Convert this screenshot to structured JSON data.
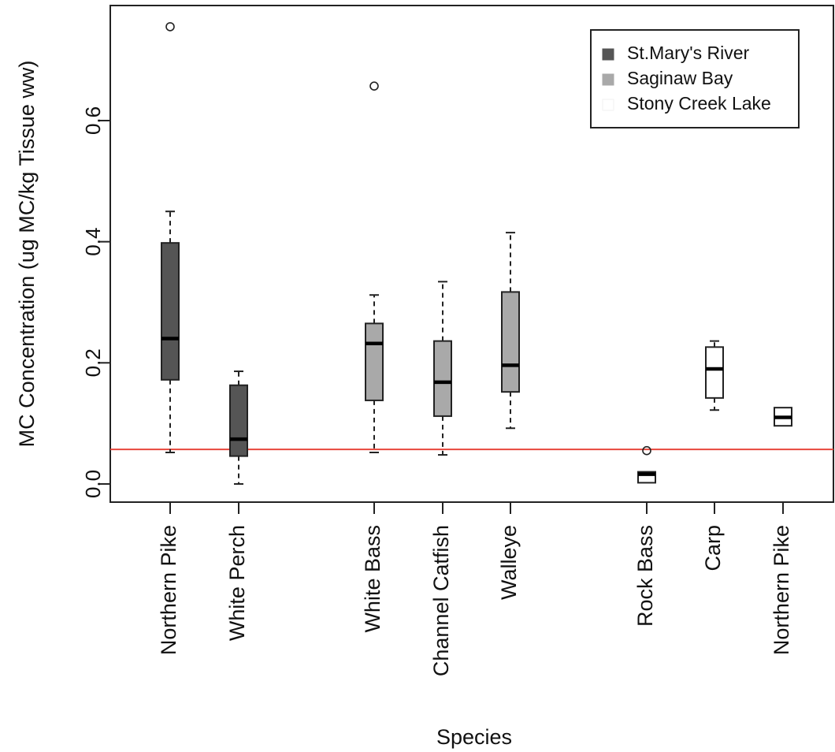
{
  "chart_data": {
    "type": "boxplot",
    "title": "",
    "xlabel": "Species",
    "ylabel": "MC Concentration (ug MC/kg Tissue ww)",
    "ylim": [
      -0.03,
      0.79
    ],
    "yticks": [
      "0.0",
      "0.2",
      "0.4",
      "0.6"
    ],
    "ytick_values": [
      0.0,
      0.2,
      0.4,
      0.6
    ],
    "grid": false,
    "legend_position": "top-right",
    "reference_line": {
      "value": 0.057,
      "color": "#e8473c"
    },
    "series": [
      {
        "name": "St.Mary's River",
        "color": "#555555"
      },
      {
        "name": "Saginaw Bay",
        "color": "#a9a9a9"
      },
      {
        "name": "Stony Creek Lake",
        "color": "#ffffff"
      }
    ],
    "categories": [
      "Northern Pike",
      "White Perch",
      "White Bass",
      "Channel Catfish",
      "Walleye",
      "Rock Bass",
      "Carp",
      "Northern Pike"
    ],
    "boxes": [
      {
        "label": "Northern Pike",
        "group": 0,
        "min": 0.052,
        "q1": 0.172,
        "median": 0.24,
        "q3": 0.398,
        "max": 0.45,
        "outliers": [
          0.755
        ]
      },
      {
        "label": "White Perch",
        "group": 0,
        "min": 0.0,
        "q1": 0.046,
        "median": 0.074,
        "q3": 0.163,
        "max": 0.186,
        "outliers": []
      },
      {
        "label": "White Bass",
        "group": 1,
        "min": 0.052,
        "q1": 0.138,
        "median": 0.232,
        "q3": 0.265,
        "max": 0.312,
        "outliers": [
          0.657
        ]
      },
      {
        "label": "Channel Catfish",
        "group": 1,
        "min": 0.048,
        "q1": 0.112,
        "median": 0.168,
        "q3": 0.236,
        "max": 0.334,
        "outliers": []
      },
      {
        "label": "Walleye",
        "group": 1,
        "min": 0.092,
        "q1": 0.152,
        "median": 0.196,
        "q3": 0.317,
        "max": 0.415,
        "outliers": []
      },
      {
        "label": "Rock Bass",
        "group": 2,
        "min": 0.002,
        "q1": 0.002,
        "median": 0.016,
        "q3": 0.02,
        "max": 0.02,
        "outliers": [
          0.055
        ]
      },
      {
        "label": "Carp",
        "group": 2,
        "min": 0.122,
        "q1": 0.142,
        "median": 0.19,
        "q3": 0.226,
        "max": 0.236,
        "outliers": []
      },
      {
        "label": "Northern Pike",
        "group": 2,
        "min": 0.096,
        "q1": 0.096,
        "median": 0.11,
        "q3": 0.126,
        "max": 0.126,
        "outliers": []
      }
    ]
  }
}
